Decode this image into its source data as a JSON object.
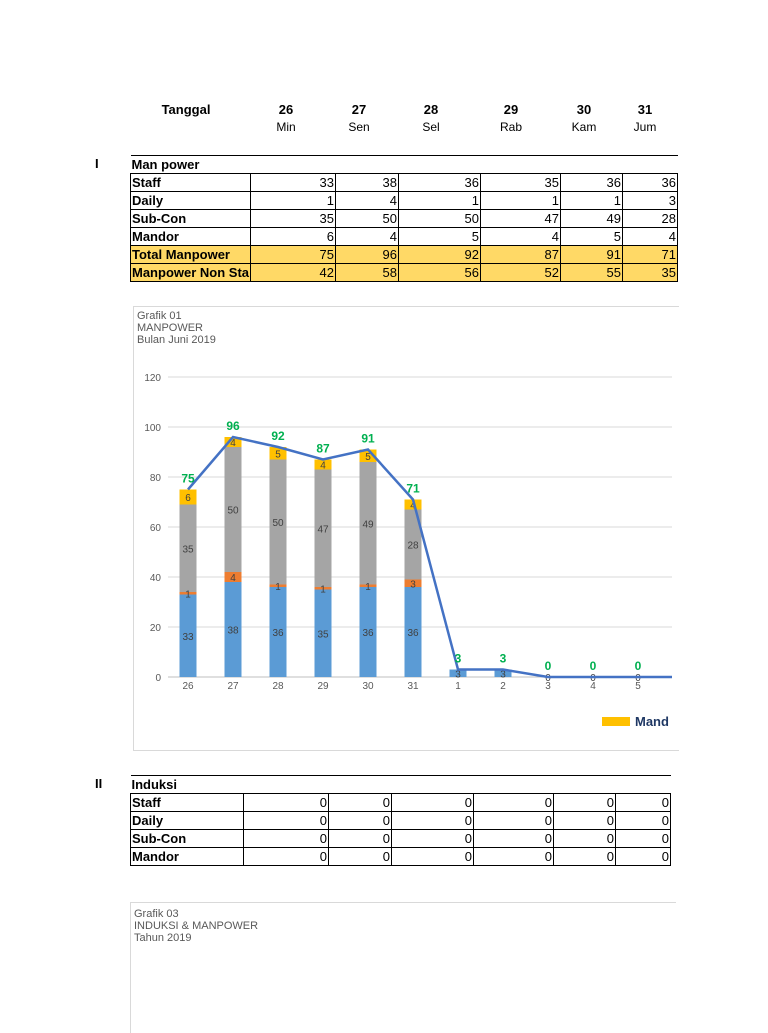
{
  "header": {
    "tanggal_label": "Tanggal",
    "columns": [
      {
        "date": "26",
        "day": "Min"
      },
      {
        "date": "27",
        "day": "Sen"
      },
      {
        "date": "28",
        "day": "Sel"
      },
      {
        "date": "29",
        "day": "Rab"
      },
      {
        "date": "30",
        "day": "Kam"
      },
      {
        "date": "31",
        "day": "Jum"
      }
    ]
  },
  "section1": {
    "roman": "I",
    "title": "Man power",
    "rows": [
      {
        "label": "Staff",
        "values": [
          "33",
          "38",
          "36",
          "35",
          "36",
          "36"
        ]
      },
      {
        "label": "Daily",
        "values": [
          "1",
          "4",
          "1",
          "1",
          "1",
          "3"
        ]
      },
      {
        "label": "Sub-Con",
        "values": [
          "35",
          "50",
          "50",
          "47",
          "49",
          "28"
        ]
      },
      {
        "label": "Mandor",
        "values": [
          "6",
          "4",
          "5",
          "4",
          "5",
          "4"
        ]
      },
      {
        "label": "Total Manpower",
        "values": [
          "75",
          "96",
          "92",
          "87",
          "91",
          "71"
        ]
      },
      {
        "label": "Manpower Non Sta",
        "values": [
          "42",
          "58",
          "56",
          "52",
          "55",
          "35"
        ]
      }
    ]
  },
  "chart1": {
    "title_lines": [
      "Grafik 01",
      "MANPOWER",
      "Bulan Juni 2019"
    ],
    "legend_label": "Mand"
  },
  "section2": {
    "roman": "II",
    "title": "Induksi",
    "rows": [
      {
        "label": "Staff",
        "values": [
          "0",
          "0",
          "0",
          "0",
          "0",
          "0"
        ]
      },
      {
        "label": "Daily",
        "values": [
          "0",
          "0",
          "0",
          "0",
          "0",
          "0"
        ]
      },
      {
        "label": "Sub-Con",
        "values": [
          "0",
          "0",
          "0",
          "0",
          "0",
          "0"
        ]
      },
      {
        "label": "Mandor",
        "values": [
          "0",
          "0",
          "0",
          "0",
          "0",
          "0"
        ]
      }
    ]
  },
  "chart2": {
    "title_lines": [
      "Grafik 03",
      "INDUKSI & MANPOWER",
      "Tahun 2019"
    ]
  },
  "colors": {
    "staff": "#5b9bd5",
    "daily": "#ed7d31",
    "subcon": "#a5a5a5",
    "mandor": "#ffc000",
    "total_line": "#4472c4",
    "total_label": "#00b050",
    "grid": "#d9d9d9",
    "table_highlight": "#ffd966"
  },
  "chart_data": {
    "type": "bar",
    "stacked": true,
    "categories": [
      "26",
      "27",
      "28",
      "29",
      "30",
      "31",
      "1",
      "2",
      "3",
      "4",
      "5"
    ],
    "series": [
      {
        "name": "",
        "values": [
          33,
          38,
          36,
          35,
          36,
          36,
          3,
          3,
          0,
          0,
          0
        ]
      },
      {
        "name": "",
        "values": [
          1,
          4,
          1,
          1,
          1,
          3,
          0,
          0,
          0,
          0,
          0
        ]
      },
      {
        "name": "",
        "values": [
          35,
          50,
          50,
          47,
          49,
          28,
          0,
          0,
          0,
          0,
          0
        ]
      },
      {
        "name": "Mand",
        "values": [
          6,
          4,
          5,
          4,
          5,
          4,
          0,
          0,
          0,
          0,
          0
        ]
      }
    ],
    "line": {
      "name": "",
      "values": [
        75,
        96,
        92,
        87,
        91,
        71,
        3,
        3,
        0,
        0,
        0
      ]
    },
    "title": "Grafik 01 MANPOWER Bulan Juni 2019",
    "xlabel": "",
    "ylabel": "",
    "ylim": [
      0,
      120
    ],
    "yticks": [
      0,
      20,
      40,
      60,
      80,
      100,
      120
    ],
    "grid": true,
    "legend_position": "bottom-right"
  }
}
